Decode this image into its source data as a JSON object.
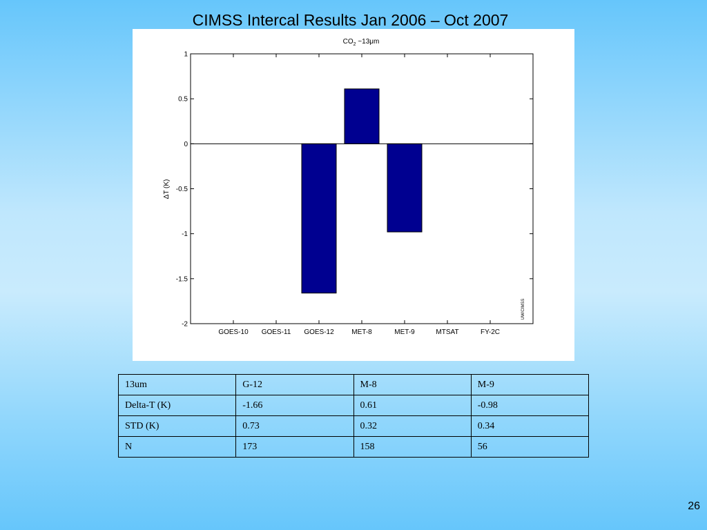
{
  "slide": {
    "title": "CIMSS Intercal Results Jan 2006 – Oct 2007",
    "page_number": "26"
  },
  "chart_data": {
    "type": "bar",
    "title": "CO₂ ~13μm",
    "title_main": "CO",
    "title_sub": "2",
    "title_tail": " ~13μm",
    "ylabel": "ΔT (K)",
    "xlabel": "",
    "watermark": "UW/CIMSS",
    "categories": [
      "GOES-10",
      "GOES-11",
      "GOES-12",
      "MET-8",
      "MET-9",
      "MTSAT",
      "FY-2C"
    ],
    "values": [
      null,
      null,
      -1.66,
      0.61,
      -0.98,
      null,
      null
    ],
    "ylim": [
      -2,
      1
    ],
    "yticks": [
      1,
      0.5,
      0,
      -0.5,
      -1,
      -1.5,
      -2
    ],
    "ytick_labels": [
      "1",
      "0.5",
      "0",
      "-0.5",
      "-1",
      "-1.5",
      "-2"
    ],
    "bar_color": "#000090",
    "grid": false,
    "zero_line": true
  },
  "table": {
    "rows": [
      [
        "13um",
        "G-12",
        "M-8",
        "M-9"
      ],
      [
        "Delta-T (K)",
        "-1.66",
        "0.61",
        "-0.98"
      ],
      [
        "STD (K)",
        "0.73",
        "0.32",
        "0.34"
      ],
      [
        "N",
        "173",
        "158",
        "56"
      ]
    ]
  }
}
